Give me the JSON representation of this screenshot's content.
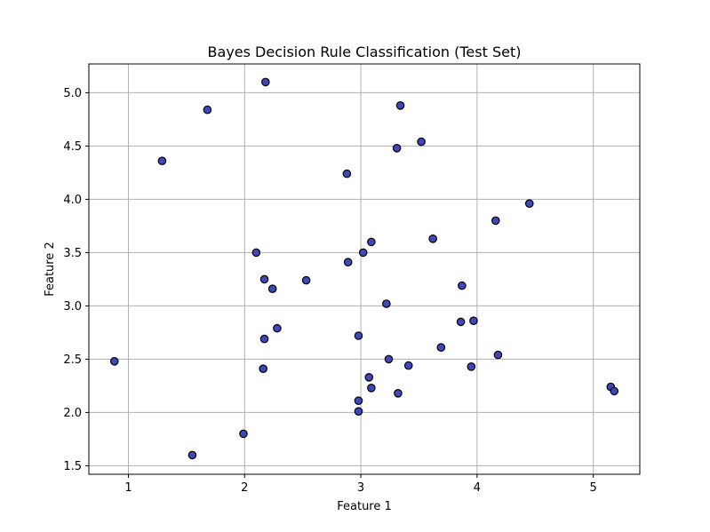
{
  "chart_data": {
    "type": "scatter",
    "title": "Bayes Decision Rule Classification (Test Set)",
    "xlabel": "Feature 1",
    "ylabel": "Feature 2",
    "xlim": [
      0.66,
      5.4
    ],
    "ylim": [
      1.42,
      5.27
    ],
    "xticks": [
      1,
      2,
      3,
      4,
      5
    ],
    "yticks": [
      1.5,
      2.0,
      2.5,
      3.0,
      3.5,
      4.0,
      4.5,
      5.0
    ],
    "xtick_labels": [
      "1",
      "2",
      "3",
      "4",
      "5"
    ],
    "ytick_labels": [
      "1.5",
      "2.0",
      "2.5",
      "3.0",
      "3.5",
      "4.0",
      "4.5",
      "5.0"
    ],
    "grid": true,
    "marker_color": "#3f48b8",
    "marker_edge_color": "#000000",
    "points": [
      [
        2.18,
        5.1
      ],
      [
        1.68,
        4.84
      ],
      [
        3.34,
        4.88
      ],
      [
        1.29,
        4.36
      ],
      [
        3.52,
        4.54
      ],
      [
        3.31,
        4.48
      ],
      [
        2.88,
        4.24
      ],
      [
        4.45,
        3.96
      ],
      [
        4.16,
        3.8
      ],
      [
        3.62,
        3.63
      ],
      [
        3.09,
        3.6
      ],
      [
        2.1,
        3.5
      ],
      [
        3.02,
        3.5
      ],
      [
        2.89,
        3.41
      ],
      [
        2.17,
        3.25
      ],
      [
        2.53,
        3.24
      ],
      [
        2.24,
        3.16
      ],
      [
        3.87,
        3.19
      ],
      [
        3.22,
        3.02
      ],
      [
        3.86,
        2.85
      ],
      [
        3.97,
        2.86
      ],
      [
        2.28,
        2.79
      ],
      [
        2.98,
        2.72
      ],
      [
        2.17,
        2.69
      ],
      [
        3.69,
        2.61
      ],
      [
        4.18,
        2.54
      ],
      [
        0.88,
        2.48
      ],
      [
        3.24,
        2.5
      ],
      [
        3.41,
        2.44
      ],
      [
        3.95,
        2.43
      ],
      [
        2.16,
        2.41
      ],
      [
        3.07,
        2.33
      ],
      [
        3.09,
        2.23
      ],
      [
        5.15,
        2.24
      ],
      [
        5.18,
        2.2
      ],
      [
        3.32,
        2.18
      ],
      [
        2.98,
        2.11
      ],
      [
        2.98,
        2.01
      ],
      [
        1.99,
        1.8
      ],
      [
        1.55,
        1.6
      ]
    ]
  }
}
